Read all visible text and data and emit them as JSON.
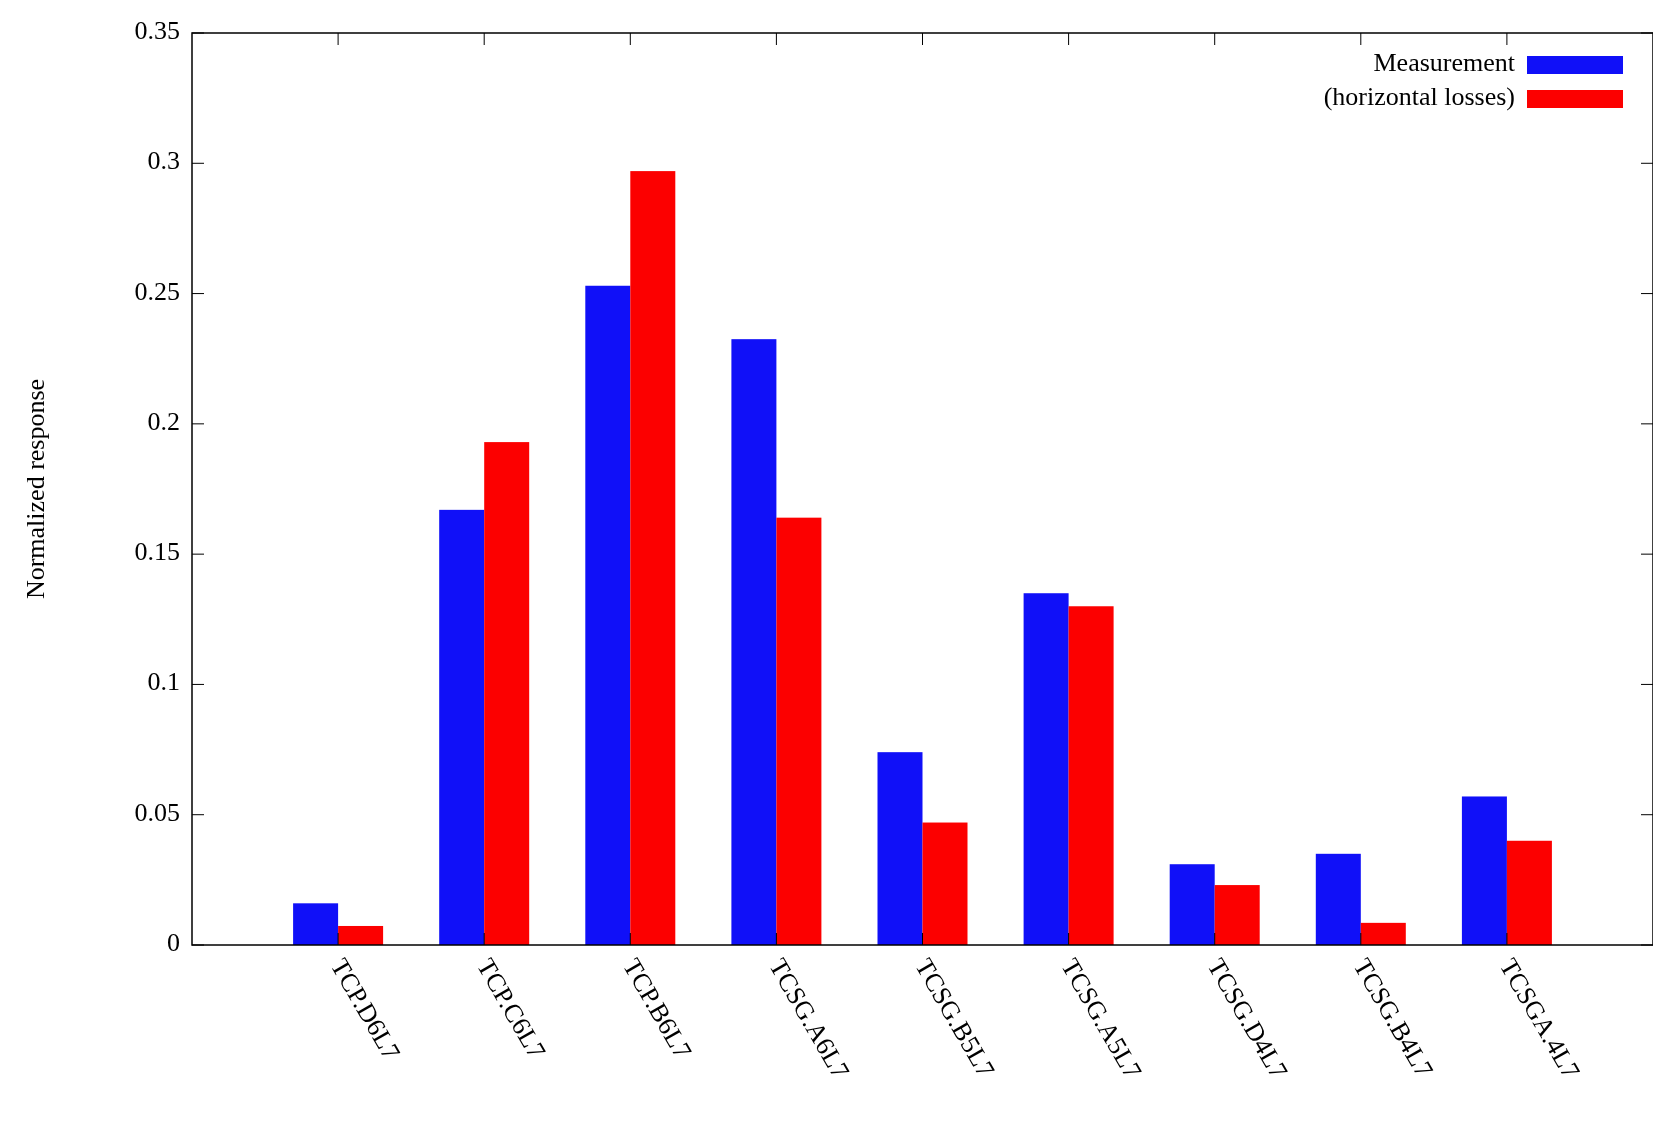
{
  "chart_data": {
    "type": "bar",
    "ylabel": "Normalized response",
    "categories": [
      "TCP.D6L7",
      "TCP.C6L7",
      "TCP.B6L7",
      "TCSG.A6L7",
      "TCSG.B5L7",
      "TCSG.A5L7",
      "TCSG.D4L7",
      "TCSG.B4L7",
      "TCSGA.4L7"
    ],
    "series": [
      {
        "name": "Measurement",
        "color": "#1010f8",
        "values": [
          0.016,
          0.167,
          0.253,
          0.2325,
          0.074,
          0.135,
          0.031,
          0.035,
          0.057
        ]
      },
      {
        "name": "(horizontal losses)",
        "color": "#fc0000",
        "values": [
          0.0073,
          0.193,
          0.297,
          0.164,
          0.047,
          0.13,
          0.023,
          0.0085,
          0.04
        ]
      }
    ],
    "ylim": [
      0,
      0.35
    ],
    "yticks": [
      0,
      0.05,
      0.1,
      0.15,
      0.2,
      0.25,
      0.3,
      0.35
    ],
    "grid": false,
    "legend": "top right"
  }
}
